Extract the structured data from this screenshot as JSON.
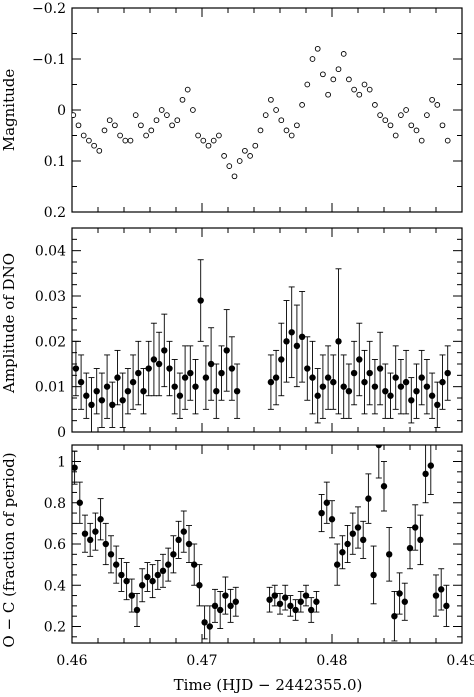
{
  "chart_data": [
    {
      "type": "scatter",
      "panel": "top",
      "ylabel": "Magnitude",
      "xlim": [
        0.46,
        0.49
      ],
      "ylim": [
        -0.2,
        0.2
      ],
      "y_inverted": true,
      "yticks": [
        "−0.2",
        "−0.1",
        "0",
        "0.1",
        "0.2"
      ],
      "marker": "open-circle",
      "series": [
        {
          "x": [
            0.4601,
            0.4605,
            0.4609,
            0.4613,
            0.4617,
            0.4621,
            0.4625,
            0.4629,
            0.4633,
            0.4637,
            0.4641,
            0.4645,
            0.4649,
            0.4653,
            0.4657,
            0.4661,
            0.4665,
            0.4669,
            0.4673,
            0.4677,
            0.4681,
            0.4685,
            0.4689,
            0.4693,
            0.4697,
            0.4701,
            0.4705,
            0.4709,
            0.4713,
            0.4717,
            0.4721,
            0.4725,
            0.4729,
            0.4733,
            0.4737,
            0.4741,
            0.4745,
            0.4749,
            0.4753,
            0.4757,
            0.4761,
            0.4765,
            0.4769,
            0.4773,
            0.4777,
            0.4781,
            0.4785,
            0.4789,
            0.4793,
            0.4797,
            0.4801,
            0.4805,
            0.4809,
            0.4813,
            0.4817,
            0.4821,
            0.4825,
            0.4829,
            0.4833,
            0.4837,
            0.4841,
            0.4845,
            0.4849,
            0.4853,
            0.4857,
            0.4861,
            0.4865,
            0.4869,
            0.4873,
            0.4877,
            0.4881,
            0.4885,
            0.4889
          ],
          "y": [
            0.01,
            0.03,
            0.05,
            0.06,
            0.07,
            0.08,
            0.04,
            0.02,
            0.03,
            0.05,
            0.06,
            0.06,
            0.01,
            0.03,
            0.05,
            0.04,
            0.02,
            0.0,
            0.01,
            0.03,
            0.02,
            -0.02,
            -0.04,
            0.0,
            0.05,
            0.06,
            0.07,
            0.06,
            0.05,
            0.09,
            0.11,
            0.13,
            0.1,
            0.08,
            0.09,
            0.07,
            0.04,
            0.01,
            -0.02,
            0.0,
            0.02,
            0.04,
            0.05,
            0.03,
            -0.01,
            -0.05,
            -0.1,
            -0.12,
            -0.07,
            -0.03,
            -0.06,
            -0.08,
            -0.11,
            -0.06,
            -0.04,
            -0.03,
            -0.05,
            -0.04,
            -0.01,
            0.01,
            0.02,
            0.03,
            0.05,
            0.01,
            0.0,
            0.03,
            0.04,
            0.06,
            0.01,
            -0.02,
            -0.01,
            0.03,
            0.06
          ]
        }
      ]
    },
    {
      "type": "scatter",
      "panel": "middle",
      "ylabel": "Amplitude of DNO",
      "xlim": [
        0.46,
        0.49
      ],
      "ylim": [
        0,
        0.045
      ],
      "yticks": [
        "0",
        "0.01",
        "0.02",
        "0.03",
        "0.04"
      ],
      "marker": "filled-circle-errorbar",
      "series": [
        {
          "x": [
            0.4603,
            0.4607,
            0.4611,
            0.4615,
            0.4619,
            0.4623,
            0.4627,
            0.4631,
            0.4635,
            0.4639,
            0.4643,
            0.4647,
            0.4651,
            0.4655,
            0.4659,
            0.4663,
            0.4667,
            0.4671,
            0.4675,
            0.4679,
            0.4683,
            0.4687,
            0.4691,
            0.4695,
            0.4699,
            0.4703,
            0.4707,
            0.4711,
            0.4715,
            0.4719,
            0.4723,
            0.4727,
            0.4753,
            0.4757,
            0.4761,
            0.4765,
            0.4769,
            0.4773,
            0.4777,
            0.4781,
            0.4785,
            0.4789,
            0.4793,
            0.4797,
            0.4801,
            0.4805,
            0.4809,
            0.4813,
            0.4817,
            0.4821,
            0.4825,
            0.4829,
            0.4833,
            0.4837,
            0.4841,
            0.4845,
            0.4849,
            0.4853,
            0.4857,
            0.4861,
            0.4865,
            0.4869,
            0.4873,
            0.4877,
            0.4881,
            0.4885,
            0.4889
          ],
          "y": [
            0.014,
            0.011,
            0.008,
            0.006,
            0.009,
            0.007,
            0.01,
            0.006,
            0.012,
            0.007,
            0.009,
            0.011,
            0.013,
            0.009,
            0.014,
            0.016,
            0.015,
            0.018,
            0.014,
            0.01,
            0.008,
            0.012,
            0.013,
            0.01,
            0.029,
            0.012,
            0.015,
            0.009,
            0.013,
            0.018,
            0.014,
            0.009,
            0.011,
            0.012,
            0.016,
            0.02,
            0.022,
            0.019,
            0.021,
            0.014,
            0.012,
            0.008,
            0.01,
            0.012,
            0.011,
            0.02,
            0.01,
            0.009,
            0.013,
            0.016,
            0.011,
            0.013,
            0.01,
            0.014,
            0.009,
            0.008,
            0.012,
            0.01,
            0.011,
            0.007,
            0.009,
            0.012,
            0.01,
            0.008,
            0.006,
            0.011,
            0.013
          ],
          "yerr": [
            0.006,
            0.006,
            0.005,
            0.006,
            0.005,
            0.006,
            0.007,
            0.005,
            0.006,
            0.006,
            0.005,
            0.006,
            0.007,
            0.005,
            0.006,
            0.008,
            0.007,
            0.008,
            0.006,
            0.006,
            0.005,
            0.007,
            0.006,
            0.006,
            0.009,
            0.007,
            0.008,
            0.006,
            0.006,
            0.009,
            0.007,
            0.006,
            0.006,
            0.006,
            0.008,
            0.009,
            0.01,
            0.009,
            0.01,
            0.007,
            0.008,
            0.006,
            0.007,
            0.007,
            0.006,
            0.016,
            0.007,
            0.006,
            0.007,
            0.008,
            0.007,
            0.007,
            0.006,
            0.008,
            0.006,
            0.005,
            0.007,
            0.006,
            0.007,
            0.005,
            0.006,
            0.006,
            0.006,
            0.005,
            0.005,
            0.006,
            0.006
          ]
        }
      ]
    },
    {
      "type": "scatter",
      "panel": "bottom",
      "ylabel": "O − C (fraction of period)",
      "xlabel": "Time (HJD − 2442355.0)",
      "xlim": [
        0.46,
        0.49
      ],
      "ylim": [
        0.12,
        1.08
      ],
      "xticks": [
        "0.46",
        "0.47",
        "0.48",
        "0.49"
      ],
      "yticks": [
        "0.2",
        "0.4",
        "0.6",
        "0.8",
        "1"
      ],
      "marker": "filled-circle-errorbar",
      "series": [
        {
          "x": [
            0.4602,
            0.4606,
            0.461,
            0.4614,
            0.4618,
            0.4622,
            0.4626,
            0.463,
            0.4634,
            0.4638,
            0.4642,
            0.4646,
            0.465,
            0.4654,
            0.4658,
            0.4662,
            0.4666,
            0.467,
            0.4674,
            0.4678,
            0.4682,
            0.4686,
            0.469,
            0.4694,
            0.4698,
            0.4702,
            0.4706,
            0.471,
            0.4714,
            0.4718,
            0.4722,
            0.4726,
            0.4752,
            0.4756,
            0.476,
            0.4764,
            0.4768,
            0.4772,
            0.4776,
            0.478,
            0.4784,
            0.4788,
            0.4792,
            0.4796,
            0.48,
            0.4804,
            0.4808,
            0.4812,
            0.4816,
            0.482,
            0.4824,
            0.4828,
            0.4832,
            0.4836,
            0.484,
            0.4844,
            0.4848,
            0.4852,
            0.4856,
            0.486,
            0.4864,
            0.4868,
            0.4872,
            0.4876,
            0.488,
            0.4884,
            0.4888
          ],
          "y": [
            0.97,
            0.8,
            0.65,
            0.62,
            0.66,
            0.72,
            0.6,
            0.55,
            0.5,
            0.45,
            0.42,
            0.35,
            0.28,
            0.4,
            0.44,
            0.42,
            0.45,
            0.47,
            0.5,
            0.55,
            0.62,
            0.66,
            0.6,
            0.5,
            0.4,
            0.22,
            0.2,
            0.3,
            0.28,
            0.35,
            0.3,
            0.32,
            0.33,
            0.35,
            0.31,
            0.34,
            0.3,
            0.28,
            0.32,
            0.35,
            0.28,
            0.32,
            0.75,
            0.8,
            0.72,
            0.5,
            0.56,
            0.6,
            0.65,
            0.68,
            0.62,
            0.82,
            0.45,
            1.08,
            0.88,
            0.55,
            0.25,
            0.36,
            0.32,
            0.58,
            0.68,
            0.62,
            0.94,
            0.98,
            0.35,
            0.38,
            0.3
          ],
          "yerr": [
            0.08,
            0.1,
            0.09,
            0.08,
            0.09,
            0.1,
            0.1,
            0.09,
            0.09,
            0.08,
            0.09,
            0.08,
            0.08,
            0.08,
            0.07,
            0.08,
            0.07,
            0.08,
            0.08,
            0.09,
            0.09,
            0.1,
            0.09,
            0.1,
            0.1,
            0.08,
            0.1,
            0.08,
            0.09,
            0.09,
            0.08,
            0.07,
            0.06,
            0.05,
            0.05,
            0.06,
            0.05,
            0.05,
            0.05,
            0.05,
            0.06,
            0.05,
            0.09,
            0.1,
            0.09,
            0.1,
            0.08,
            0.09,
            0.1,
            0.1,
            0.09,
            0.12,
            0.14,
            0.16,
            0.12,
            0.13,
            0.12,
            0.1,
            0.09,
            0.1,
            0.11,
            0.12,
            0.14,
            0.14,
            0.1,
            0.1,
            0.1
          ]
        }
      ]
    }
  ]
}
